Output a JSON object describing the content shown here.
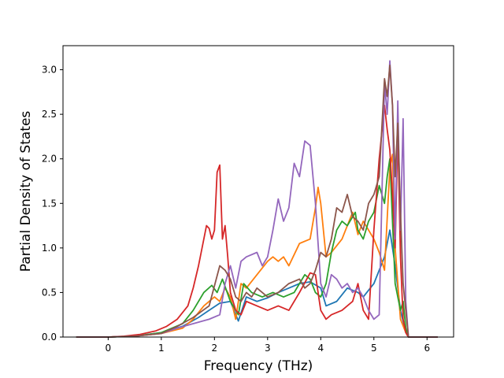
{
  "chart_data": {
    "type": "line",
    "title": "",
    "xlabel": "Frequency (THz)",
    "ylabel": "Partial Density of States",
    "xlim": [
      -0.85,
      6.5
    ],
    "ylim": [
      0.0,
      3.27
    ],
    "xticks": [
      0,
      1,
      2,
      3,
      4,
      5,
      6
    ],
    "xtick_labels": [
      "0",
      "1",
      "2",
      "3",
      "4",
      "5",
      "6"
    ],
    "yticks": [
      0.0,
      0.5,
      1.0,
      1.5,
      2.0,
      2.5,
      3.0
    ],
    "ytick_labels": [
      "0.0",
      "0.5",
      "1.0",
      "1.5",
      "2.0",
      "2.5",
      "3.0"
    ],
    "grid": false,
    "legend": "none",
    "series": [
      {
        "color": "#1f77b4",
        "x": [
          -0.6,
          0.0,
          0.5,
          1.0,
          1.4,
          1.7,
          1.9,
          2.1,
          2.3,
          2.45,
          2.6,
          2.8,
          3.0,
          3.2,
          3.4,
          3.6,
          3.8,
          4.0,
          4.1,
          4.3,
          4.5,
          4.7,
          4.8,
          5.0,
          5.2,
          5.3,
          5.4,
          5.5,
          5.6,
          5.65,
          6.2
        ],
        "y": [
          0.0,
          0.0,
          0.01,
          0.05,
          0.12,
          0.22,
          0.3,
          0.38,
          0.4,
          0.18,
          0.45,
          0.4,
          0.44,
          0.5,
          0.55,
          0.6,
          0.62,
          0.55,
          0.35,
          0.4,
          0.55,
          0.5,
          0.45,
          0.6,
          0.9,
          1.2,
          0.8,
          0.3,
          0.05,
          0.0,
          0.0
        ]
      },
      {
        "color": "#ff7f0e",
        "x": [
          -0.6,
          0.0,
          0.5,
          1.0,
          1.4,
          1.6,
          1.8,
          2.0,
          2.1,
          2.2,
          2.3,
          2.4,
          2.5,
          2.6,
          2.8,
          3.0,
          3.1,
          3.2,
          3.3,
          3.4,
          3.6,
          3.8,
          3.9,
          3.95,
          4.0,
          4.1,
          4.2,
          4.4,
          4.5,
          4.6,
          4.7,
          4.8,
          4.9,
          5.0,
          5.1,
          5.2,
          5.3,
          5.35,
          5.4,
          5.5,
          5.6,
          5.65,
          6.2
        ],
        "y": [
          0.0,
          0.0,
          0.01,
          0.04,
          0.1,
          0.2,
          0.35,
          0.45,
          0.4,
          0.55,
          0.45,
          0.2,
          0.6,
          0.55,
          0.7,
          0.85,
          0.9,
          0.85,
          0.9,
          0.8,
          1.05,
          1.1,
          1.45,
          1.68,
          1.5,
          0.9,
          0.95,
          1.1,
          1.25,
          1.4,
          1.15,
          1.3,
          1.2,
          1.1,
          0.95,
          0.75,
          1.9,
          2.05,
          1.0,
          0.2,
          0.05,
          0.0,
          0.0
        ]
      },
      {
        "color": "#2ca02c",
        "x": [
          -0.6,
          0.0,
          0.5,
          1.0,
          1.4,
          1.6,
          1.8,
          1.95,
          2.05,
          2.15,
          2.3,
          2.45,
          2.55,
          2.7,
          2.9,
          3.1,
          3.3,
          3.5,
          3.6,
          3.7,
          3.8,
          3.9,
          4.0,
          4.1,
          4.2,
          4.3,
          4.4,
          4.5,
          4.6,
          4.65,
          4.7,
          4.8,
          4.9,
          5.0,
          5.1,
          5.2,
          5.25,
          5.3,
          5.4,
          5.5,
          5.55,
          5.6,
          5.65,
          6.2
        ],
        "y": [
          0.0,
          0.0,
          0.01,
          0.05,
          0.15,
          0.3,
          0.5,
          0.58,
          0.5,
          0.65,
          0.4,
          0.25,
          0.6,
          0.5,
          0.45,
          0.5,
          0.45,
          0.5,
          0.6,
          0.7,
          0.65,
          0.5,
          0.45,
          0.6,
          0.95,
          1.2,
          1.3,
          1.25,
          1.35,
          1.4,
          1.2,
          1.1,
          1.3,
          1.4,
          1.7,
          1.5,
          1.8,
          2.0,
          0.6,
          0.3,
          0.4,
          0.1,
          0.0,
          0.0
        ]
      },
      {
        "color": "#d62728",
        "x": [
          -0.6,
          0.0,
          0.3,
          0.6,
          0.9,
          1.1,
          1.3,
          1.5,
          1.6,
          1.7,
          1.75,
          1.8,
          1.85,
          1.9,
          1.95,
          2.0,
          2.05,
          2.1,
          2.15,
          2.2,
          2.25,
          2.3,
          2.4,
          2.5,
          2.6,
          2.8,
          3.0,
          3.2,
          3.4,
          3.6,
          3.8,
          3.9,
          4.0,
          4.1,
          4.2,
          4.4,
          4.6,
          4.7,
          4.8,
          4.9,
          5.0,
          5.1,
          5.2,
          5.25,
          5.3,
          5.35,
          5.4,
          5.45,
          5.5,
          5.55,
          5.6,
          5.65,
          6.2
        ],
        "y": [
          0.0,
          0.0,
          0.01,
          0.03,
          0.07,
          0.12,
          0.2,
          0.35,
          0.55,
          0.8,
          0.95,
          1.1,
          1.25,
          1.22,
          1.1,
          1.2,
          1.85,
          1.93,
          1.1,
          1.25,
          0.9,
          0.5,
          0.3,
          0.25,
          0.4,
          0.35,
          0.3,
          0.35,
          0.3,
          0.5,
          0.72,
          0.7,
          0.3,
          0.2,
          0.25,
          0.3,
          0.4,
          0.6,
          0.3,
          0.2,
          1.2,
          2.0,
          2.6,
          2.33,
          2.1,
          1.6,
          1.0,
          2.3,
          0.9,
          0.2,
          0.05,
          0.0,
          0.0
        ]
      },
      {
        "color": "#9467bd",
        "x": [
          -0.6,
          0.0,
          0.5,
          1.0,
          1.3,
          1.6,
          1.9,
          2.1,
          2.2,
          2.3,
          2.4,
          2.5,
          2.6,
          2.8,
          2.9,
          3.0,
          3.1,
          3.2,
          3.3,
          3.4,
          3.5,
          3.6,
          3.7,
          3.8,
          3.9,
          4.0,
          4.1,
          4.2,
          4.3,
          4.4,
          4.5,
          4.6,
          4.7,
          4.8,
          4.9,
          5.0,
          5.1,
          5.2,
          5.25,
          5.3,
          5.35,
          5.4,
          5.45,
          5.5,
          5.55,
          5.6,
          5.65,
          6.2
        ],
        "y": [
          0.0,
          0.0,
          0.01,
          0.04,
          0.1,
          0.15,
          0.2,
          0.25,
          0.6,
          0.8,
          0.55,
          0.85,
          0.9,
          0.95,
          0.8,
          0.9,
          1.2,
          1.55,
          1.3,
          1.45,
          1.95,
          1.8,
          2.2,
          2.15,
          1.5,
          0.6,
          0.45,
          0.7,
          0.65,
          0.55,
          0.6,
          0.5,
          0.55,
          0.45,
          0.3,
          0.2,
          0.25,
          2.85,
          2.5,
          3.1,
          2.6,
          1.1,
          2.65,
          1.2,
          2.45,
          0.4,
          0.0,
          0.0
        ]
      },
      {
        "color": "#8c564b",
        "x": [
          -0.6,
          0.0,
          0.5,
          1.0,
          1.3,
          1.6,
          1.9,
          2.1,
          2.2,
          2.3,
          2.4,
          2.5,
          2.6,
          2.7,
          2.8,
          2.9,
          3.0,
          3.2,
          3.4,
          3.6,
          3.7,
          3.8,
          3.9,
          4.0,
          4.1,
          4.2,
          4.3,
          4.4,
          4.5,
          4.6,
          4.7,
          4.8,
          4.9,
          5.0,
          5.1,
          5.2,
          5.25,
          5.3,
          5.35,
          5.4,
          5.45,
          5.5,
          5.55,
          5.6,
          5.65,
          6.2
        ],
        "y": [
          0.0,
          0.0,
          0.01,
          0.04,
          0.12,
          0.22,
          0.35,
          0.8,
          0.75,
          0.65,
          0.45,
          0.4,
          0.5,
          0.45,
          0.55,
          0.5,
          0.45,
          0.5,
          0.6,
          0.65,
          0.55,
          0.6,
          0.75,
          0.95,
          0.9,
          1.1,
          1.45,
          1.4,
          1.6,
          1.35,
          1.3,
          1.2,
          1.5,
          1.6,
          1.8,
          2.9,
          2.7,
          3.05,
          2.6,
          1.8,
          2.4,
          1.4,
          0.6,
          0.3,
          0.0,
          0.0
        ]
      }
    ]
  }
}
